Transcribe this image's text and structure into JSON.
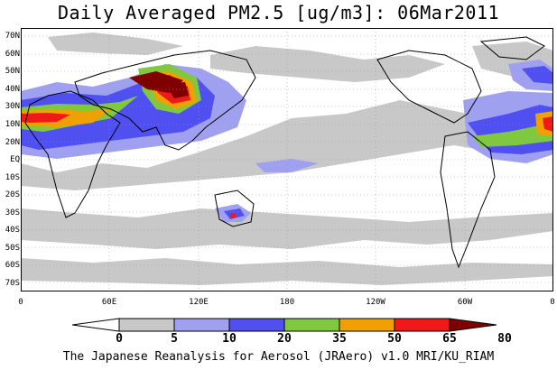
{
  "title": "Daily Averaged PM2.5 [ug/m3]: 06Mar2011",
  "credit": "The Japanese Reanalysis for Aerosol (JRAero) v1.0 MRI/KU_RIAM",
  "lat_labels": [
    "70N",
    "60N",
    "50N",
    "40N",
    "30N",
    "20N",
    "10N",
    "EQ",
    "10S",
    "20S",
    "30S",
    "40S",
    "50S",
    "60S",
    "70S"
  ],
  "lon_labels": [
    "0",
    "60E",
    "120E",
    "180",
    "120W",
    "60W",
    "0"
  ],
  "colorbar": {
    "levels": [
      "0",
      "5",
      "10",
      "20",
      "35",
      "50",
      "65",
      "80"
    ],
    "colors": [
      "#ffffff",
      "#c8c8c8",
      "#a0a0f0",
      "#5050f0",
      "#80c840",
      "#f0a000",
      "#f01818",
      "#800000"
    ]
  },
  "map_data": {
    "projection": "cylindrical equidistant",
    "lon_range": [
      0,
      360
    ],
    "lat_range": [
      -75,
      75
    ],
    "grid": "dotted every 60 deg lon, 10 deg lat",
    "high_concentration_regions": [
      "North Africa / Sahara",
      "Arabian Peninsula",
      "India",
      "East China",
      "Mongolia / Gobi",
      "West Africa (Atlantic edge)",
      "SE Australia"
    ]
  }
}
